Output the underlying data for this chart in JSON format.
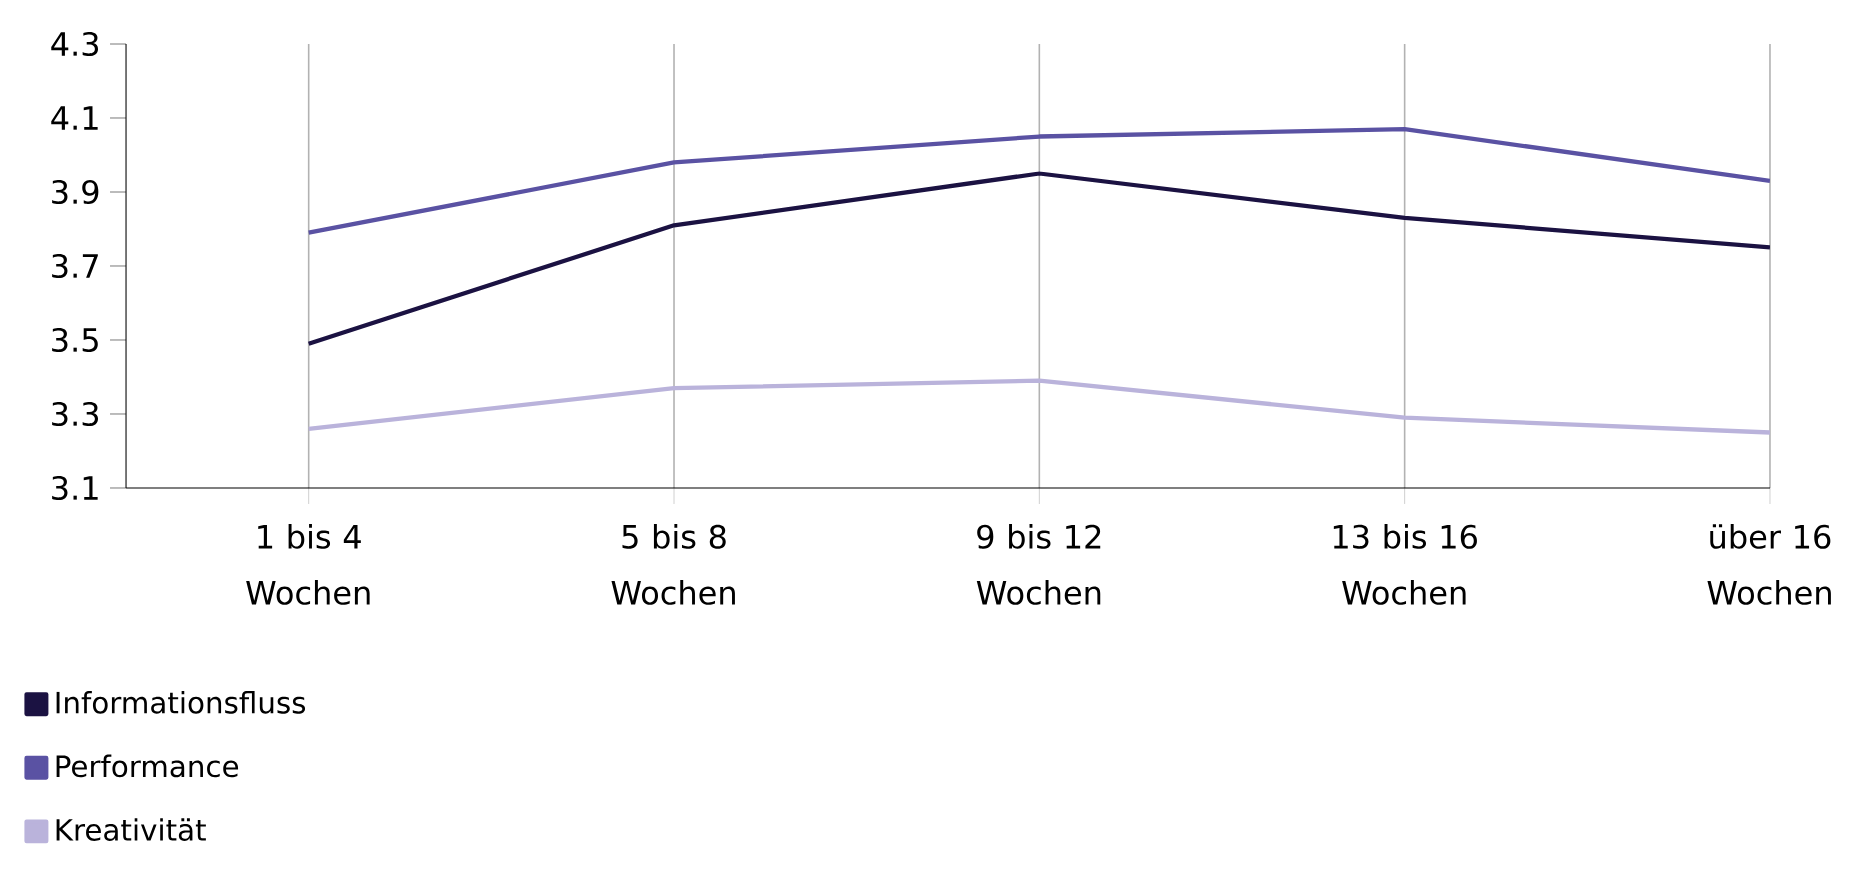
{
  "chart_data": {
    "type": "line",
    "categories": [
      "1 bis 4 Wochen",
      "5 bis 8 Wochen",
      "9 bis 12 Wochen",
      "13 bis 16 Wochen",
      "über 16 Wochen"
    ],
    "series": [
      {
        "name": "Informationsfluss",
        "color": "#1b1242",
        "values": [
          3.49,
          3.81,
          3.95,
          3.83,
          3.75
        ]
      },
      {
        "name": "Performance",
        "color": "#5a52a3",
        "values": [
          3.79,
          3.98,
          4.05,
          4.07,
          3.93
        ]
      },
      {
        "name": "Kreativität",
        "color": "#bab3db",
        "values": [
          3.26,
          3.37,
          3.39,
          3.29,
          3.25
        ]
      }
    ],
    "ylim": [
      3.1,
      4.3
    ],
    "yticks": [
      3.1,
      3.3,
      3.5,
      3.7,
      3.9,
      4.1,
      4.3
    ],
    "grid": "x",
    "legend": "bottom left"
  }
}
